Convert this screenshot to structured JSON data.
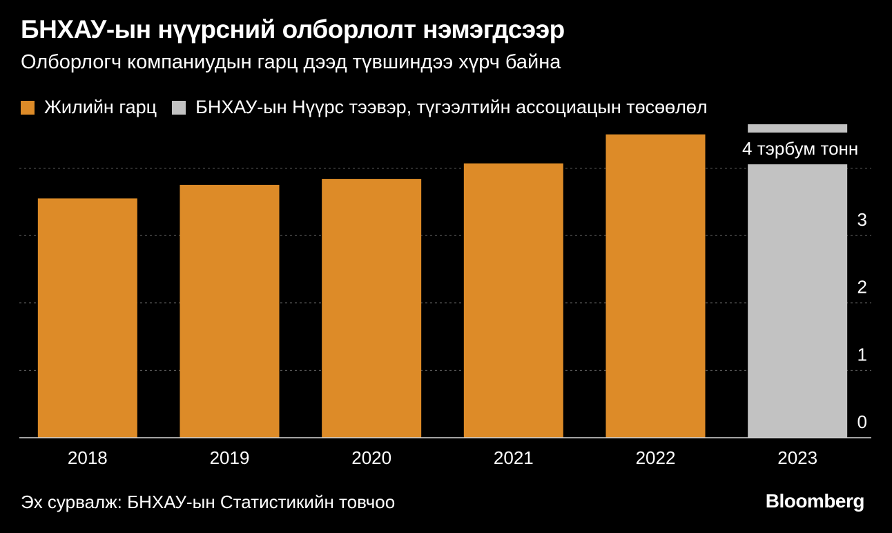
{
  "title": "БНХАУ-ын нүүрсний олборлолт нэмэгдсээр",
  "subtitle": "Олборлогч компаниудын гарц дээд түвшиндээ хүрч байна",
  "legend": [
    {
      "label": "Жилийн гарц",
      "color": "#dd8b28"
    },
    {
      "label": "БНХАУ-ын Нүүрс тээвэр, түгээлтийн ассоциацын төсөөлөл",
      "color": "#c2c2c2"
    }
  ],
  "annotation": "4 тэрбум тонн",
  "source": "Эх сурвалж: БНХАУ-ын Статистикийн товчоо",
  "brand": "Bloomberg",
  "chart_data": {
    "type": "bar",
    "categories": [
      "2018",
      "2019",
      "2020",
      "2021",
      "2022",
      "2023"
    ],
    "values": [
      3.55,
      3.75,
      3.84,
      4.07,
      4.5,
      4.65
    ],
    "series_index": [
      0,
      0,
      0,
      0,
      0,
      1
    ],
    "yticks": [
      0,
      1,
      2,
      3
    ],
    "ylim": [
      0,
      4.65
    ],
    "grid": true,
    "colors": {
      "actual": "#dd8b28",
      "forecast": "#c2c2c2",
      "grid": "#666666",
      "axis": "#d9d9d9"
    }
  }
}
